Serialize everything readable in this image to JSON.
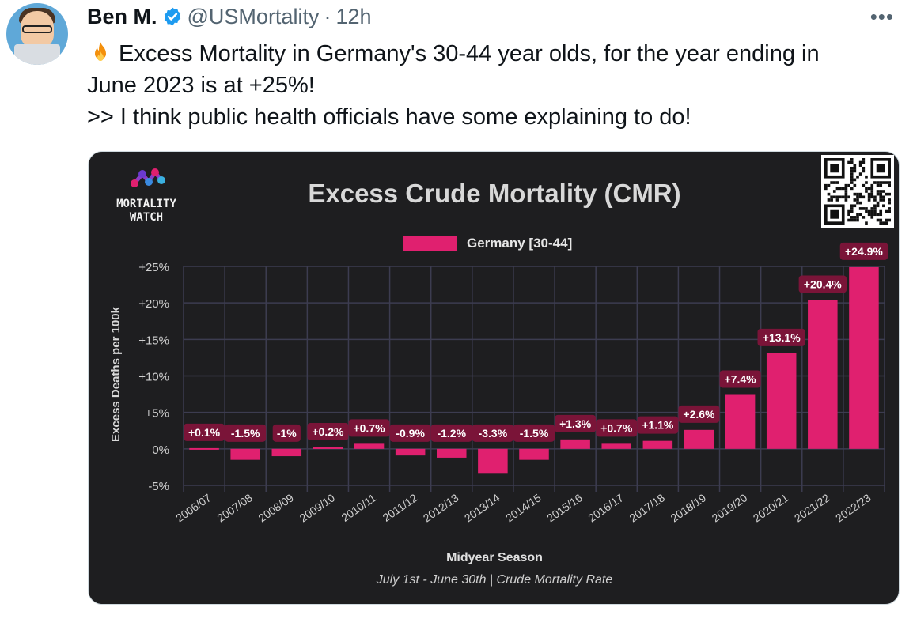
{
  "author": {
    "name": "Ben M.",
    "handle": "@USMortality",
    "separator": "·",
    "time": "12h",
    "more": "•••"
  },
  "tweet": {
    "line1": "Excess Mortality in Germany's 30-44 year olds, for the year ending in",
    "line2": "June 2023 is at +25%!",
    "line3": ">> I think public health officials have some explaining to do!"
  },
  "card": {
    "logo_line1": "MORTALITY",
    "logo_line2": "WATCH",
    "title": "Excess Crude Mortality (CMR)",
    "legend": "Germany [30-44]",
    "xlabel": "Midyear Season",
    "note": "July 1st - June 30th | Crude Mortality Rate"
  },
  "colors": {
    "bar": "#e0206f",
    "label_bg": "#7a1438",
    "background": "#1e1e20",
    "grid": "#3c3c50"
  },
  "chart_data": {
    "type": "bar",
    "title": "Excess Crude Mortality (CMR)",
    "xlabel": "Midyear Season",
    "ylabel": "Excess Deaths per 100k",
    "ylim": [
      -5,
      25
    ],
    "yticks": [
      "+25%",
      "+20%",
      "+15%",
      "+10%",
      "+5%",
      "0%",
      "-5%"
    ],
    "ytick_values": [
      25,
      20,
      15,
      10,
      5,
      0,
      -5
    ],
    "grid": true,
    "legend_position": "top-center",
    "categories": [
      "2006/07",
      "2007/08",
      "2008/09",
      "2009/10",
      "2010/11",
      "2011/12",
      "2012/13",
      "2013/14",
      "2014/15",
      "2015/16",
      "2016/17",
      "2017/18",
      "2018/19",
      "2019/20",
      "2020/21",
      "2021/22",
      "2022/23"
    ],
    "series": [
      {
        "name": "Germany [30-44]",
        "values": [
          0.1,
          -1.5,
          -1,
          0.2,
          0.7,
          -0.9,
          -1.2,
          -3.3,
          -1.5,
          1.3,
          0.7,
          1.1,
          2.6,
          7.4,
          13.1,
          20.4,
          24.9
        ],
        "labels": [
          "+0.1%",
          "-1.5%",
          "-1%",
          "+0.2%",
          "+0.7%",
          "-0.9%",
          "-1.2%",
          "-3.3%",
          "-1.5%",
          "+1.3%",
          "+0.7%",
          "+1.1%",
          "+2.6%",
          "+7.4%",
          "+13.1%",
          "+20.4%",
          "+24.9%"
        ]
      }
    ]
  }
}
